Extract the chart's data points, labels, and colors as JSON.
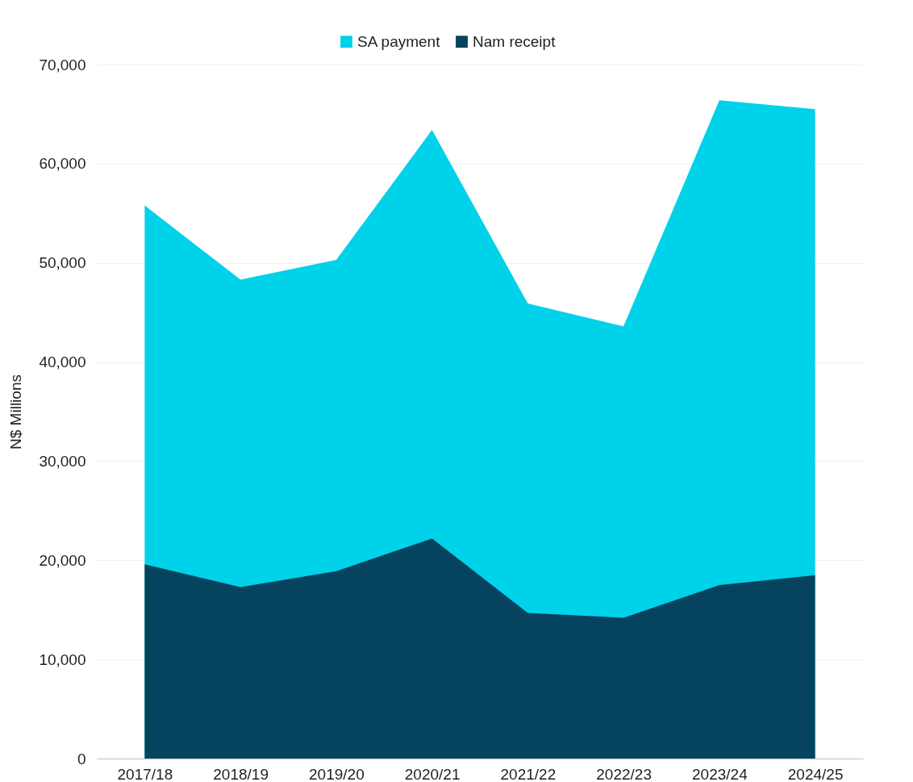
{
  "chart_data": {
    "type": "area",
    "ylabel": "N$ Millions",
    "categories": [
      "2017/18",
      "2018/19",
      "2019/20",
      "2020/21",
      "2021/22",
      "2022/23",
      "2023/24",
      "2024/25"
    ],
    "series": [
      {
        "name": "SA payment",
        "color": "#00d2ea",
        "values": [
          55800,
          48300,
          50300,
          63400,
          45900,
          43600,
          66400,
          65500
        ]
      },
      {
        "name": "Nam receipt",
        "color": "#05435f",
        "values": [
          19600,
          17300,
          18900,
          22200,
          14700,
          14200,
          17500,
          18500
        ]
      }
    ],
    "ylim": [
      0,
      70000
    ],
    "yticks": [
      0,
      {
        "value": 10000,
        "label": "10,000"
      },
      {
        "value": 20000,
        "label": "20,000"
      },
      {
        "value": 30000,
        "label": "30,000"
      },
      {
        "value": 40000,
        "label": "40,000"
      },
      {
        "value": 50000,
        "label": "50,000"
      },
      {
        "value": 60000,
        "label": "60,000"
      },
      {
        "value": 70000,
        "label": "70,000"
      }
    ],
    "grid": "y",
    "legend": "top"
  }
}
